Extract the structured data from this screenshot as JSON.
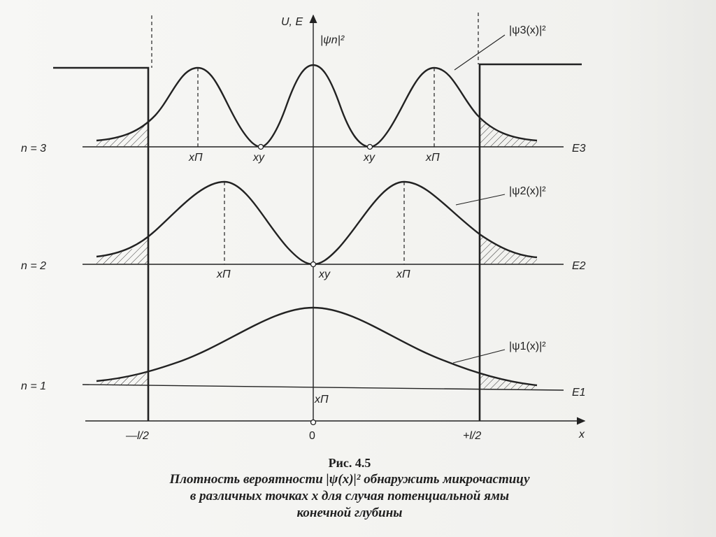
{
  "labels": {
    "y_axis": "U, E",
    "psi_axis": "|ψn|²",
    "x_axis": "x",
    "n3": "n = 3",
    "n2": "n = 2",
    "n1": "n = 1",
    "E3": "E3",
    "E2": "E2",
    "E1": "E1",
    "psi3": "|ψ3(x)|²",
    "psi2": "|ψ2(x)|²",
    "psi1": "|ψ1(x)|²",
    "x_p": "xП",
    "x_u": "xу",
    "left_wall": "—l/2",
    "origin": "0",
    "right_wall": "+l/2"
  },
  "caption": {
    "title": "Рис. 4.5",
    "line1": "Плотность вероятности |ψ(x)|² обнаружить микрочастицу",
    "line2": "в различных точках x для случая потенциальной ямы",
    "line3": "конечной глубины"
  }
}
